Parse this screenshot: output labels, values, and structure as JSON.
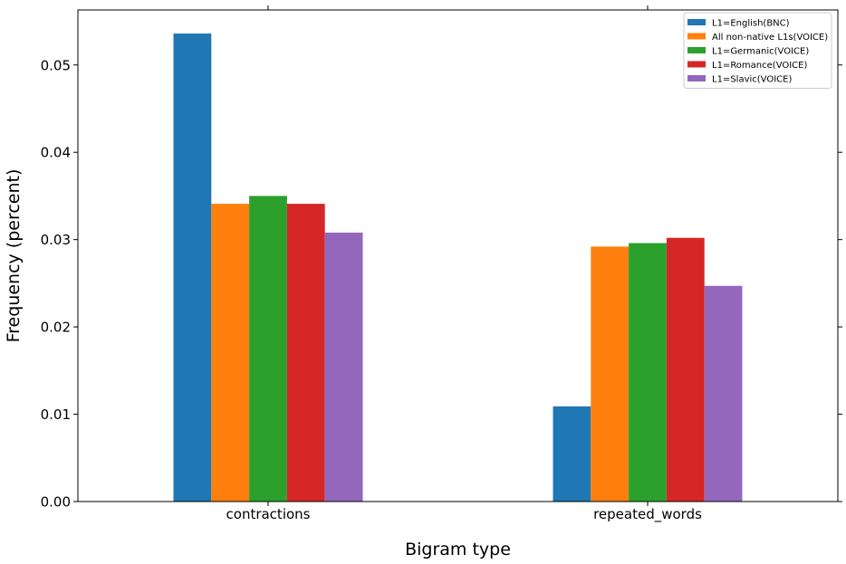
{
  "chart_data": {
    "type": "bar",
    "categories": [
      "contractions",
      "repeated_words"
    ],
    "series": [
      {
        "name": "L1=English(BNC)",
        "values": [
          0.0536,
          0.0109
        ],
        "color": "#1f77b4"
      },
      {
        "name": "All non-native L1s(VOICE)",
        "values": [
          0.0341,
          0.0292
        ],
        "color": "#ff7f0e"
      },
      {
        "name": "L1=Germanic(VOICE)",
        "values": [
          0.035,
          0.0296
        ],
        "color": "#2ca02c"
      },
      {
        "name": "L1=Romance(VOICE)",
        "values": [
          0.0341,
          0.0302
        ],
        "color": "#d62728"
      },
      {
        "name": "L1=Slavic(VOICE)",
        "values": [
          0.0308,
          0.0247
        ],
        "color": "#9467bd"
      }
    ],
    "xlabel": "Bigram type",
    "ylabel": "Frequency (percent)",
    "ylim": [
      0,
      0.0563
    ],
    "yticks": [
      "0.00",
      "0.01",
      "0.02",
      "0.03",
      "0.04",
      "0.05"
    ],
    "ytick_values": [
      0,
      0.01,
      0.02,
      0.03,
      0.04,
      0.05
    ],
    "legend_position": "top-right",
    "grid": false
  }
}
